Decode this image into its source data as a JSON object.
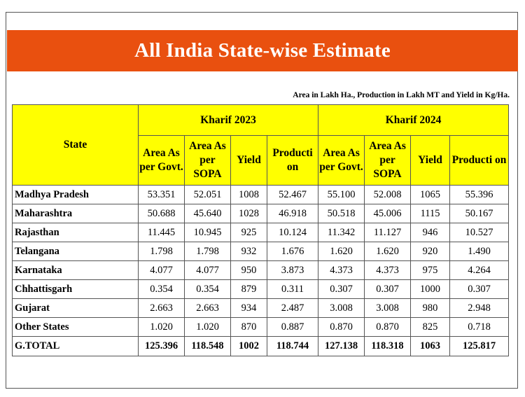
{
  "title": "All India State-wise Estimate",
  "units_note": "Area in Lakh Ha., Production in Lakh MT and Yield in Kg/Ha.",
  "table": {
    "state_header": "State",
    "groups": [
      "Kharif 2023",
      "Kharif 2024"
    ],
    "subheaders": {
      "area_govt": "Area As per Govt.",
      "area_sopa": "Area As per SOPA",
      "yield": "Yield",
      "production": "Producti on"
    },
    "rows": [
      {
        "state": "Madhya Pradesh",
        "v": [
          "53.351",
          "52.051",
          "1008",
          "52.467",
          "55.100",
          "52.008",
          "1065",
          "55.396"
        ]
      },
      {
        "state": "Maharashtra",
        "v": [
          "50.688",
          "45.640",
          "1028",
          "46.918",
          "50.518",
          "45.006",
          "1115",
          "50.167"
        ]
      },
      {
        "state": "Rajasthan",
        "v": [
          "11.445",
          "10.945",
          "925",
          "10.124",
          "11.342",
          "11.127",
          "946",
          "10.527"
        ]
      },
      {
        "state": "Telangana",
        "v": [
          "1.798",
          "1.798",
          "932",
          "1.676",
          "1.620",
          "1.620",
          "920",
          "1.490"
        ]
      },
      {
        "state": "Karnataka",
        "v": [
          "4.077",
          "4.077",
          "950",
          "3.873",
          "4.373",
          "4.373",
          "975",
          "4.264"
        ]
      },
      {
        "state": "Chhattisgarh",
        "v": [
          "0.354",
          "0.354",
          "879",
          "0.311",
          "0.307",
          "0.307",
          "1000",
          "0.307"
        ]
      },
      {
        "state": "Gujarat",
        "v": [
          "2.663",
          "2.663",
          "934",
          "2.487",
          "3.008",
          "3.008",
          "980",
          "2.948"
        ]
      },
      {
        "state": "Other States",
        "v": [
          "1.020",
          "1.020",
          "870",
          "0.887",
          "0.870",
          "0.870",
          "825",
          "0.718"
        ]
      }
    ],
    "total": {
      "state": "G.TOTAL",
      "v": [
        "125.396",
        "118.548",
        "1002",
        "118.744",
        "127.138",
        "118.318",
        "1063",
        "125.817"
      ]
    }
  },
  "colors": {
    "banner": "#e9500f",
    "header_fill": "#ffff00"
  }
}
